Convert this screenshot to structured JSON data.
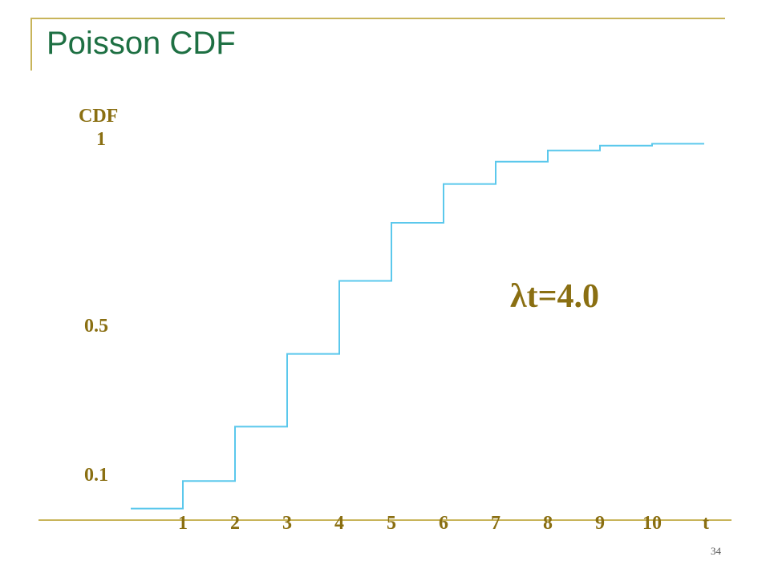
{
  "slide": {
    "title": "Poisson CDF",
    "page_number": "34"
  },
  "colors": {
    "accent_frame": "#c8b45a",
    "title": "#1e7043",
    "axis_text": "#8a6f12",
    "line": "#5bc8ec"
  },
  "chart_data": {
    "type": "line",
    "step": true,
    "title": "",
    "xlabel": "t",
    "ylabel": "CDF",
    "x_ticks": [
      "1",
      "2",
      "3",
      "4",
      "5",
      "6",
      "7",
      "8",
      "9",
      "10"
    ],
    "y_tick_labels": [
      {
        "value": 1,
        "label": "1"
      },
      {
        "value": 0.5,
        "label": "0.5"
      },
      {
        "value": 0.1,
        "label": "0.1"
      }
    ],
    "ylim": [
      0,
      1.08
    ],
    "xlim": [
      0,
      10.5
    ],
    "annotation": "λt=4.0",
    "series": [
      {
        "x": [
          0,
          1,
          2,
          3,
          4,
          5,
          6,
          7,
          8,
          9,
          10
        ],
        "values": [
          0.018,
          0.092,
          0.238,
          0.433,
          0.629,
          0.785,
          0.889,
          0.949,
          0.979,
          0.992,
          0.997
        ]
      }
    ]
  }
}
